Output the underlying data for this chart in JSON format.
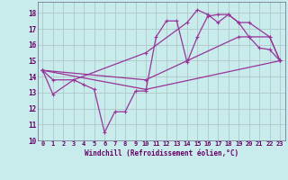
{
  "xlabel": "Windchill (Refroidissement éolien,°C)",
  "bg_color": "#c8ecec",
  "grid_color": "#b0c8c8",
  "line_color": "#993399",
  "xlim": [
    -0.5,
    23.5
  ],
  "ylim": [
    10.0,
    18.7
  ],
  "yticks": [
    10,
    11,
    12,
    13,
    14,
    15,
    16,
    17,
    18
  ],
  "xticks": [
    0,
    1,
    2,
    3,
    4,
    5,
    6,
    7,
    8,
    9,
    10,
    11,
    12,
    13,
    14,
    15,
    16,
    17,
    18,
    19,
    20,
    21,
    22,
    23
  ],
  "series": [
    {
      "x": [
        0,
        1,
        3,
        4,
        5,
        6,
        7,
        8,
        9,
        10,
        11,
        12,
        13,
        14,
        15,
        16,
        17,
        18,
        19,
        20,
        21,
        22,
        23
      ],
      "y": [
        14.4,
        12.9,
        13.8,
        13.5,
        13.2,
        10.5,
        11.8,
        11.8,
        13.1,
        13.1,
        16.5,
        17.5,
        17.5,
        14.9,
        16.5,
        17.8,
        17.9,
        17.9,
        17.4,
        16.5,
        15.8,
        15.7,
        15.0
      ]
    },
    {
      "x": [
        0,
        1,
        3,
        10,
        14,
        15,
        16,
        17,
        18,
        19,
        20,
        22,
        23
      ],
      "y": [
        14.4,
        13.8,
        13.8,
        15.5,
        17.4,
        18.2,
        17.9,
        17.4,
        17.9,
        17.4,
        17.4,
        16.5,
        15.0
      ]
    },
    {
      "x": [
        0,
        10,
        14,
        19,
        20,
        22,
        23
      ],
      "y": [
        14.4,
        13.8,
        15.0,
        16.5,
        16.5,
        16.5,
        15.0
      ]
    },
    {
      "x": [
        0,
        10,
        23
      ],
      "y": [
        14.4,
        13.2,
        15.0
      ]
    }
  ]
}
